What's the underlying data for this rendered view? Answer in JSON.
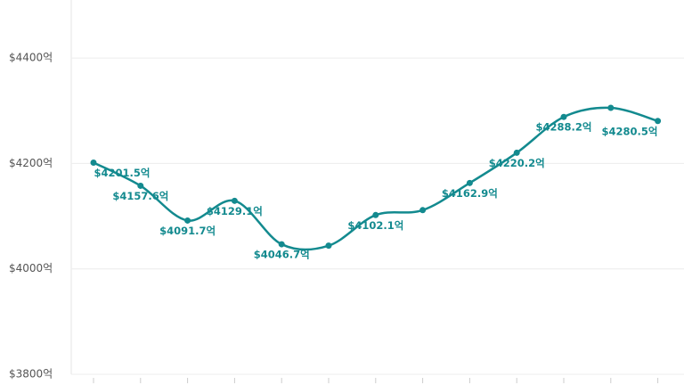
{
  "chart_data": {
    "type": "line",
    "categories": [
      null,
      null,
      null,
      null,
      null,
      null,
      null,
      null,
      null,
      null,
      null,
      null,
      null
    ],
    "values": [
      4201.5,
      4157.6,
      4091.7,
      4129.1,
      4046.7,
      4044,
      4102.1,
      4111.4,
      4162.9,
      4220.2,
      4288.2,
      4305.5,
      4280.5
    ],
    "value_labels": [
      "$4201.5억",
      "$4157.6억",
      "$4091.7억",
      "$4129.1억",
      "$4046.7억",
      null,
      "$4102.1억",
      null,
      "$4162.9억",
      "$4220.2억",
      "$4288.2억",
      null,
      "$4280.5억"
    ],
    "color": "#138a8f",
    "ylim": [
      3800,
      4510
    ],
    "yticks": [
      {
        "value": 3800,
        "label": "$3800억"
      },
      {
        "value": 4000,
        "label": "$4000억"
      },
      {
        "value": 4200,
        "label": "$4200억"
      },
      {
        "value": 4400,
        "label": "$4400억"
      }
    ],
    "grid": true
  }
}
